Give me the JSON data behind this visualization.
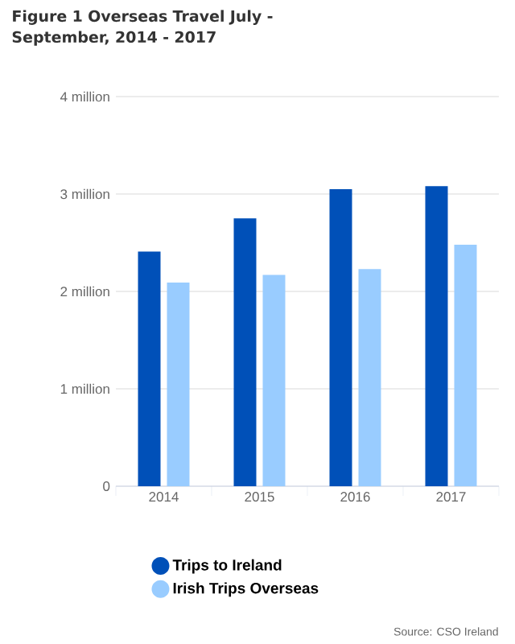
{
  "chart_data": {
    "type": "bar",
    "title": "Figure 1 Overseas Travel July - September, 2014 - 2017",
    "categories": [
      "2014",
      "2015",
      "2016",
      "2017"
    ],
    "series": [
      {
        "name": "Trips to Ireland",
        "color": "#0050b8",
        "values": [
          2.41,
          2.75,
          3.05,
          3.08
        ]
      },
      {
        "name": "Irish Trips Overseas",
        "color": "#99ccff",
        "values": [
          2.09,
          2.17,
          2.23,
          2.48
        ]
      }
    ],
    "ylim": [
      0,
      4
    ],
    "yticks": [
      0,
      {
        "value": 1,
        "label": "1 million"
      },
      {
        "value": 2,
        "label": "2 million"
      },
      {
        "value": 3,
        "label": "3 million"
      },
      {
        "value": 4,
        "label": "4 million"
      }
    ],
    "grid": "y",
    "legend": "bottom",
    "annotations": [
      "Source: CSO Ireland"
    ]
  }
}
